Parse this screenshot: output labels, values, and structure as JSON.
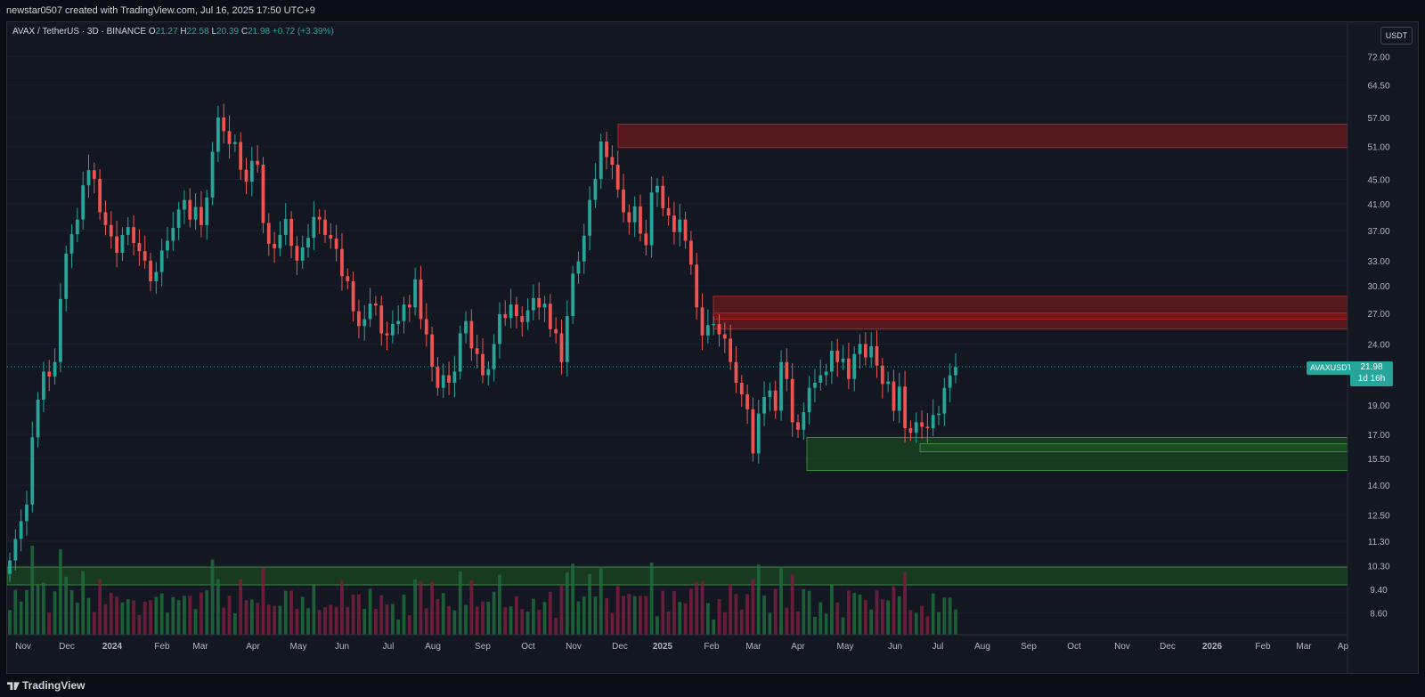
{
  "header": {
    "credit": "newstar0507 created with TradingView.com, Jul 16, 2025 17:50 UTC+9"
  },
  "legend": {
    "symbol": "AVAX / TetherUS · 3D · BINANCE",
    "open_label": "O",
    "open": "21.27",
    "high_label": "H",
    "high": "22.58",
    "low_label": "L",
    "low": "20.39",
    "close_label": "C",
    "close": "21.98",
    "change": "+0.72 (+3.39%)"
  },
  "price_axis": {
    "unit_button": "USDT",
    "ticks": [
      "72.00",
      "64.50",
      "57.00",
      "51.00",
      "45.00",
      "41.00",
      "37.00",
      "33.00",
      "30.00",
      "27.00",
      "24.00",
      "19.00",
      "17.00",
      "15.50",
      "14.00",
      "12.50",
      "11.30",
      "10.30",
      "9.40",
      "8.60"
    ],
    "current_symbol": "AVAXUSDT",
    "current_price": "21.98",
    "countdown": "1d 16h"
  },
  "time_axis": {
    "ticks": [
      "Nov",
      "Dec",
      "2024",
      "Feb",
      "Mar",
      "Apr",
      "May",
      "Jun",
      "Jul",
      "Aug",
      "Sep",
      "Oct",
      "Nov",
      "Dec",
      "2025",
      "Feb",
      "Mar",
      "Apr",
      "May",
      "Jun",
      "Jul",
      "Aug",
      "Sep",
      "Oct",
      "Nov",
      "Dec",
      "2026",
      "Feb",
      "Mar",
      "Ap"
    ]
  },
  "footer": {
    "brand": "TradingView"
  },
  "colors": {
    "up": "#26a69a",
    "down": "#ef5350",
    "bg": "#131722",
    "supply_zone": "#8b1a1a",
    "demand_zone": "#1b5e20"
  },
  "chart_data": {
    "type": "candlestick",
    "symbol": "AVAXUSDT",
    "timeframe": "3D",
    "scale": "log",
    "ylim": [
      8.0,
      80.0
    ],
    "x_range": [
      "2023-10-20",
      "2026-04-10"
    ],
    "last_candle": {
      "open": 21.27,
      "high": 22.58,
      "low": 20.39,
      "close": 21.98
    },
    "closes": [
      10.5,
      11.4,
      12.2,
      13.0,
      16.8,
      19.4,
      21.6,
      21.2,
      22.4,
      28.5,
      33.9,
      36.5,
      38.6,
      44.0,
      46.6,
      45.1,
      39.7,
      37.8,
      36.2,
      34.0,
      36.4,
      37.5,
      35.3,
      34.2,
      33.0,
      30.5,
      31.6,
      34.3,
      35.6,
      37.4,
      40.1,
      41.6,
      38.6,
      40.5,
      37.8,
      42.0,
      50.0,
      57.0,
      54.1,
      51.5,
      51.9,
      46.7,
      44.6,
      48.3,
      47.6,
      38.1,
      35.2,
      34.6,
      36.4,
      38.7,
      34.9,
      33.0,
      34.7,
      36.0,
      39.0,
      38.6,
      36.4,
      35.9,
      34.5,
      31.1,
      30.5,
      27.2,
      25.7,
      26.4,
      28.0,
      27.8,
      25.0,
      24.8,
      25.9,
      26.2,
      27.9,
      27.6,
      30.7,
      26.4,
      24.9,
      22.0,
      20.3,
      21.3,
      20.7,
      21.6,
      25.0,
      26.2,
      23.6,
      23.1,
      21.3,
      21.8,
      24.0,
      26.9,
      26.5,
      27.9,
      26.7,
      26.1,
      27.3,
      28.6,
      27.6,
      28.0,
      25.4,
      25.0,
      22.4,
      26.7,
      31.4,
      32.9,
      36.3,
      41.6,
      45.1,
      52.0,
      49.0,
      47.6,
      43.3,
      39.7,
      38.2,
      40.6,
      36.6,
      35.0,
      42.8,
      43.9,
      40.3,
      39.2,
      36.8,
      38.6,
      35.6,
      32.5,
      27.6,
      24.8,
      25.8,
      25.9,
      24.9,
      24.5,
      22.4,
      20.7,
      19.8,
      18.7,
      15.8,
      18.4,
      19.6,
      20.1,
      18.6,
      22.4,
      21.0,
      17.8,
      17.3,
      18.5,
      20.3,
      20.7,
      21.3,
      21.6,
      23.4,
      22.4,
      22.7,
      21.0,
      23.1,
      24.0,
      22.8,
      23.8,
      22.1,
      20.6,
      20.8,
      18.6,
      20.4,
      17.4,
      17.1,
      17.8,
      17.5,
      17.4,
      18.3,
      18.4,
      20.3,
      21.3,
      21.98
    ],
    "supply_zones": [
      [
        50.8,
        55.6
      ],
      [
        25.4,
        28.8
      ],
      [
        26.4,
        27.0
      ]
    ],
    "demand_zones": [
      [
        14.8,
        16.8
      ],
      [
        15.9,
        16.4
      ],
      [
        9.6,
        10.1
      ]
    ],
    "volume_ylim": [
      0,
      100
    ]
  }
}
